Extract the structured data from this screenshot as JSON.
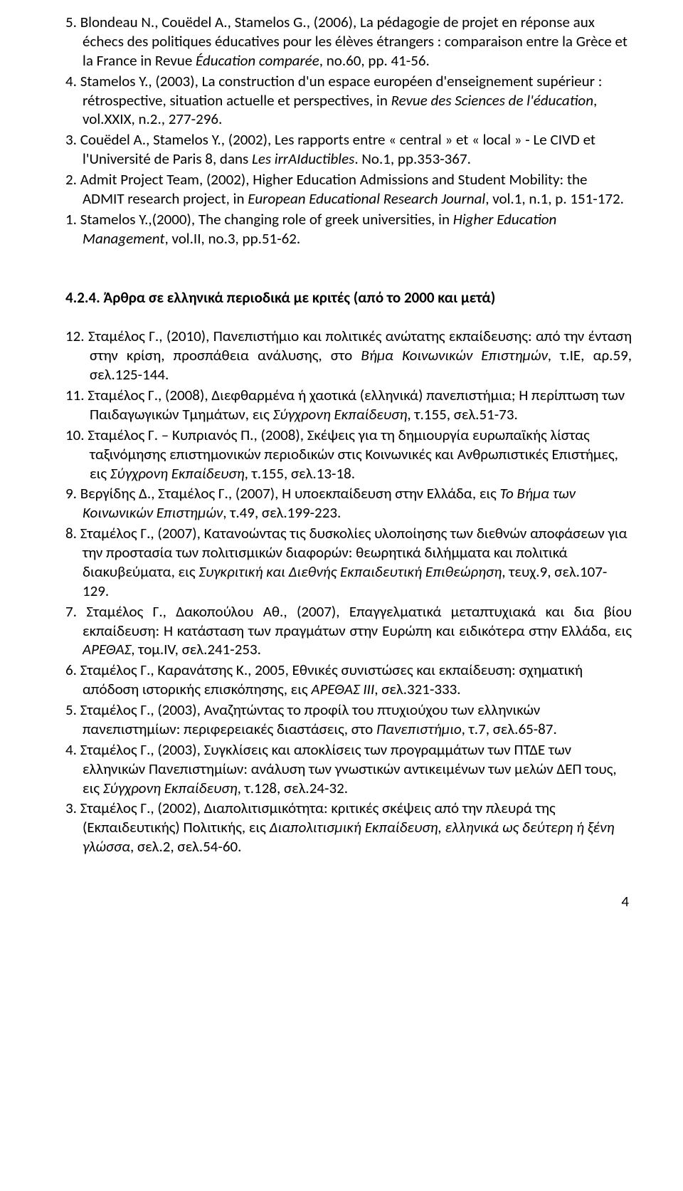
{
  "entries_top": [
    {
      "num": "5.",
      "text": "Blondeau N., Couëdel A., Stamelos G., (2006), La pédagogie de projet en réponse aux échecs des politiques éducatives pour les élèves étrangers : comparaison entre la Grèce et la France in Revue ",
      "ital": "Éducation comparée",
      "after": ", no.60, pp. 41-56."
    },
    {
      "num": "4.",
      "text": "Stamelos Y., (2003), La construction d'un espace européen d'enseignement supérieur : rétrospective, situation actuelle et perspectives, in ",
      "ital": "Revue des Sciences de l'éducation",
      "after": ", vol.XXIX, n.2., 277-296."
    },
    {
      "num": "3.",
      "text": "Couëdel A., Stamelos Y., (2002), Les rapports entre « central » et « local » - Le CIVD et l'Université de Paris 8, dans ",
      "ital": "Les irrAIductibles",
      "after": ". No.1, pp.353-367."
    },
    {
      "num": "2.",
      "text": "Admit Project Team, (2002), Higher Education Admissions and Student Mobility: the ADMIT research project, in ",
      "ital": "European Educational Research Journal",
      "after": ", vol.1, n.1, p. 151-172."
    },
    {
      "num": "1.",
      "text": "Stamelos Y.,(2000), The changing role of greek universities, in ",
      "ital": "Higher Education Management",
      "after": ", vol.II, no.3, pp.51-62."
    }
  ],
  "section_heading": "4.2.4. Άρθρα σε ελληνικά περιοδικά με κριτές (από το 2000 και μετά)",
  "entries_bottom": [
    {
      "num": "12.",
      "justify": true,
      "text": "Σταμέλος Γ., (2010), Πανεπιστήμιο και πολιτικές ανώτατης εκπαίδευσης: από την ένταση στην κρίση, προσπάθεια ανάλυσης, στο ",
      "ital": "Βήμα Κοινωνικών Επιστημών",
      "after": ", τ.ΙΕ, αρ.59, σελ.125-144."
    },
    {
      "num": "11.",
      "text": "Σταμέλος Γ., (2008), Διεφθαρμένα ή χαοτικά (ελληνικά) πανεπιστήμια; Η περίπτωση των Παιδαγωγικών Τμημάτων, εις ",
      "ital": "Σύγχρονη Εκπαίδευση",
      "after": ", τ.155, σελ.51-73."
    },
    {
      "num": "10.",
      "text": "Σταμέλος Γ. – Κυπριανός Π., (2008), Σκέψεις για τη δημιουργία ευρωπαϊκής λίστας ταξινόμησης επιστημονικών περιοδικών στις Κοινωνικές και Ανθρωπιστικές Επιστήμες, εις ",
      "ital": "Σύγχρονη Εκπαίδευση",
      "after": ", τ.155, σελ.13-18."
    },
    {
      "num": "9.",
      "text": "Βεργίδης  Δ., Σταμέλος Γ., (2007), Η υποεκπαίδευση στην Ελλάδα, εις ",
      "ital": "Το Βήμα των Κοινωνικών Επιστημών",
      "after": ", τ.49, σελ.199-223."
    },
    {
      "num": "8.",
      "text": "Σταμέλος Γ., (2007), Κατανοώντας τις δυσκολίες υλοποίησης των διεθνών αποφάσεων για την προστασία των πολιτισμικών διαφορών: θεωρητικά διλήμματα και πολιτικά διακυβεύματα, εις ",
      "ital": "Συγκριτική και Διεθνής Εκπαιδευτική Επιθεώρηση",
      "after": ", τευχ.9, σελ.107-129."
    },
    {
      "num": "7.",
      "justify": true,
      "text": "Σταμέλος Γ., Δακοπούλου Αθ., (2007), Επαγγελματικά μεταπτυχιακά και δια βίου εκπαίδευση: Η κατάσταση των πραγμάτων στην Ευρώπη και ειδικότερα στην Ελλάδα, εις ",
      "ital": "ΑΡΕΘΑΣ",
      "after": ", τομ.IV, σελ.241-253."
    },
    {
      "num": "6.",
      "text": "Σταμέλος Γ., Καρανάτσης Κ., 2005, Εθνικές συνιστώσες και εκπαίδευση: σχηματική απόδοση ιστορικής επισκόπησης, εις ",
      "ital": "ΑΡΕΘΑΣ ΙΙΙ",
      "after": ", σελ.321-333."
    },
    {
      "num": "5.",
      "text": "Σταμέλος Γ., (2003), Αναζητώντας το προφίλ του πτυχιούχου των ελληνικών πανεπιστημίων: περιφερειακές διαστάσεις, στο ",
      "ital": "Πανεπιστήμιο",
      "after": ", τ.7, σελ.65-87."
    },
    {
      "num": "4.",
      "text": "Σταμέλος Γ., (2003), Συγκλίσεις και αποκλίσεις των προγραμμάτων των ΠΤΔΕ των ελληνικών Πανεπιστημίων: ανάλυση των γνωστικών αντικειμένων των μελών ΔΕΠ τους, εις ",
      "ital": "Σύγχρονη Εκπαίδευση",
      "after": ", τ.128, σελ.24-32."
    },
    {
      "num": "3.",
      "text": "Σταμέλος Γ., (2002), Διαπολιτισμικότητα: κριτικές σκέψεις από την πλευρά της (Εκπαιδευτικής) Πολιτικής, εις ",
      "ital": "Διαπολιτισμική Εκπαίδευση, ελληνικά ως δεύτερη ή ξένη γλώσσα",
      "after": ", σελ.2, σελ.54-60."
    }
  ],
  "page_number": "4"
}
